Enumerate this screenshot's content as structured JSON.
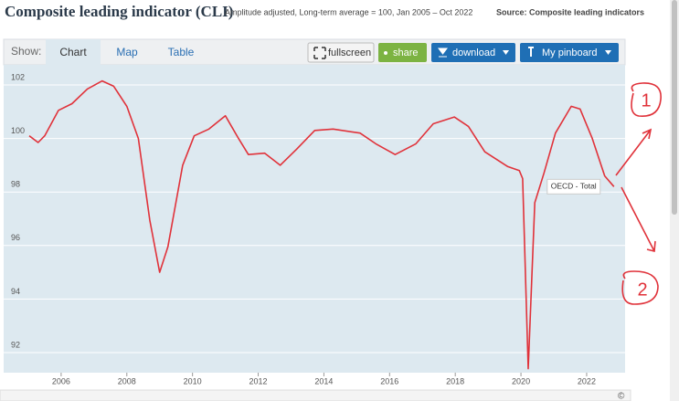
{
  "header": {
    "title": "Composite leading indicator (CLI)",
    "subtitle": "Amplitude adjusted, Long-term average = 100, Jan 2005 – Oct 2022",
    "source": "Source: Composite leading indicators"
  },
  "toolbar": {
    "show_label": "Show:",
    "tabs": [
      "Chart",
      "Map",
      "Table"
    ],
    "buttons": [
      "fullscreen",
      "share",
      "download",
      "My pinboard"
    ]
  },
  "chart_data": {
    "type": "line",
    "x": [
      2005.03,
      2005.3,
      2005.5,
      2005.92,
      2006.33,
      2006.8,
      2007.25,
      2007.6,
      2008.0,
      2008.35,
      2008.7,
      2009.0,
      2009.25,
      2009.7,
      2010.05,
      2010.5,
      2011.0,
      2011.4,
      2011.7,
      2012.2,
      2012.67,
      2013.17,
      2013.72,
      2014.28,
      2015.1,
      2015.58,
      2016.17,
      2016.8,
      2017.33,
      2017.97,
      2018.4,
      2018.9,
      2019.6,
      2019.95,
      2020.05,
      2020.22,
      2020.42,
      2020.7,
      2021.05,
      2021.53,
      2021.8,
      2022.17,
      2022.55,
      2022.83
    ],
    "series": [
      {
        "name": "OECD - Total",
        "color": "#e0323a",
        "values": [
          100.1,
          99.85,
          100.1,
          101.05,
          101.3,
          101.85,
          102.15,
          101.95,
          101.2,
          100.0,
          96.95,
          95.0,
          95.95,
          99.0,
          100.1,
          100.35,
          100.85,
          100.0,
          99.4,
          99.45,
          99.0,
          99.6,
          100.3,
          100.35,
          100.2,
          99.8,
          99.4,
          99.8,
          100.55,
          100.8,
          100.45,
          99.5,
          98.95,
          98.8,
          98.5,
          91.4,
          97.6,
          98.7,
          100.2,
          101.2,
          101.1,
          100.0,
          98.6,
          98.2
        ]
      }
    ],
    "xlim": [
      2004.25,
      2023.17
    ],
    "xticks": [
      2006,
      2008,
      2010,
      2012,
      2014,
      2016,
      2018,
      2020,
      2022
    ],
    "ylim": [
      91.25,
      102.75
    ],
    "yticks": [
      92,
      94,
      96,
      98,
      100,
      102
    ],
    "grid": true,
    "annotations": [
      "1",
      "2"
    ]
  },
  "footer": {
    "copyright": "©"
  }
}
